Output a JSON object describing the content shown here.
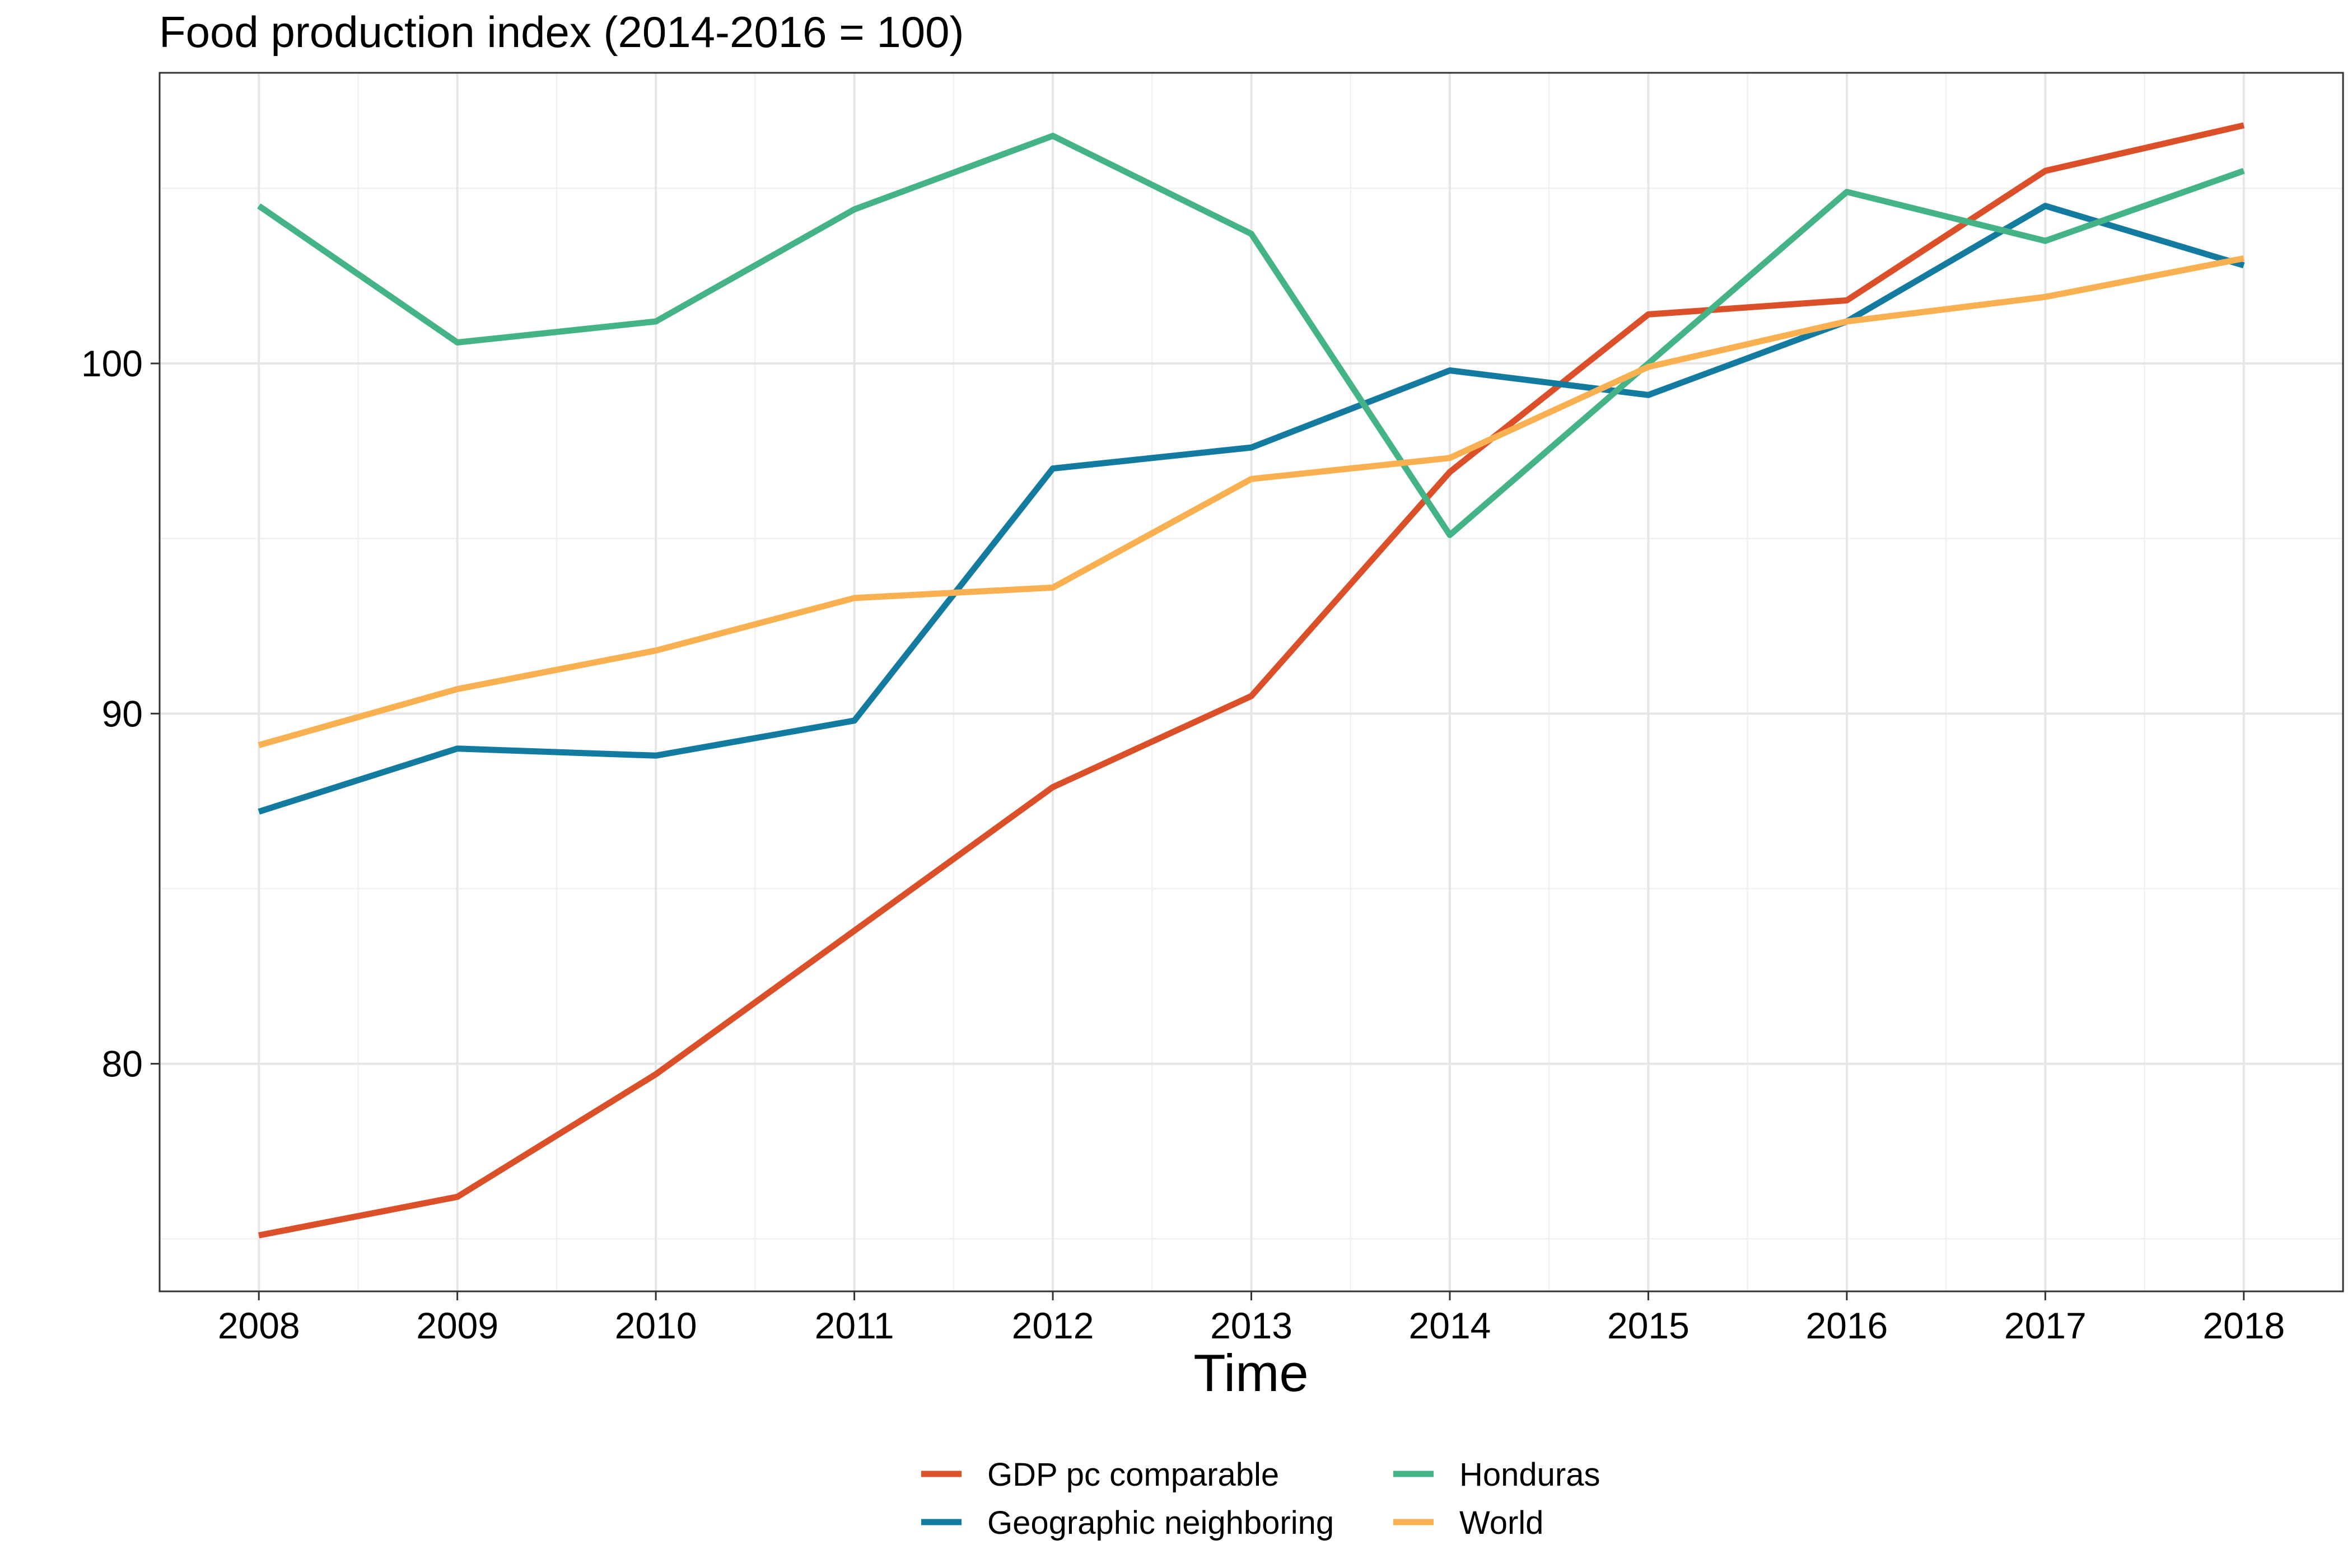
{
  "chart_data": {
    "type": "line",
    "title": "Food production index (2014-2016 = 100)",
    "xlabel": "Time",
    "ylabel": "",
    "x": [
      2008,
      2009,
      2010,
      2011,
      2012,
      2013,
      2014,
      2015,
      2016,
      2017,
      2018
    ],
    "xlim": [
      2007.5,
      2018.5
    ],
    "ylim": [
      73.5,
      108.3
    ],
    "y_ticks": [
      80,
      90,
      100
    ],
    "y_minor_ticks": [
      75,
      85,
      95,
      105
    ],
    "grid": true,
    "legend_position": "bottom",
    "series": [
      {
        "name": "GDP pc comparable",
        "color": "#db4f29",
        "values": [
          75.1,
          76.2,
          79.7,
          83.8,
          87.9,
          90.5,
          96.9,
          101.4,
          101.8,
          105.5,
          106.8
        ]
      },
      {
        "name": "Geographic neighboring",
        "color": "#127b9f",
        "values": [
          87.2,
          89.0,
          88.8,
          89.8,
          97.0,
          97.6,
          99.8,
          99.1,
          101.2,
          104.5,
          102.8
        ]
      },
      {
        "name": "Honduras",
        "color": "#44b486",
        "values": [
          104.5,
          100.6,
          101.2,
          104.4,
          106.5,
          103.7,
          95.1,
          100.0,
          104.9,
          103.5,
          105.5
        ]
      },
      {
        "name": "World",
        "color": "#f8b050",
        "values": [
          89.1,
          90.7,
          91.8,
          93.3,
          93.6,
          96.7,
          97.3,
          99.9,
          101.2,
          101.9,
          103.0
        ]
      }
    ]
  }
}
